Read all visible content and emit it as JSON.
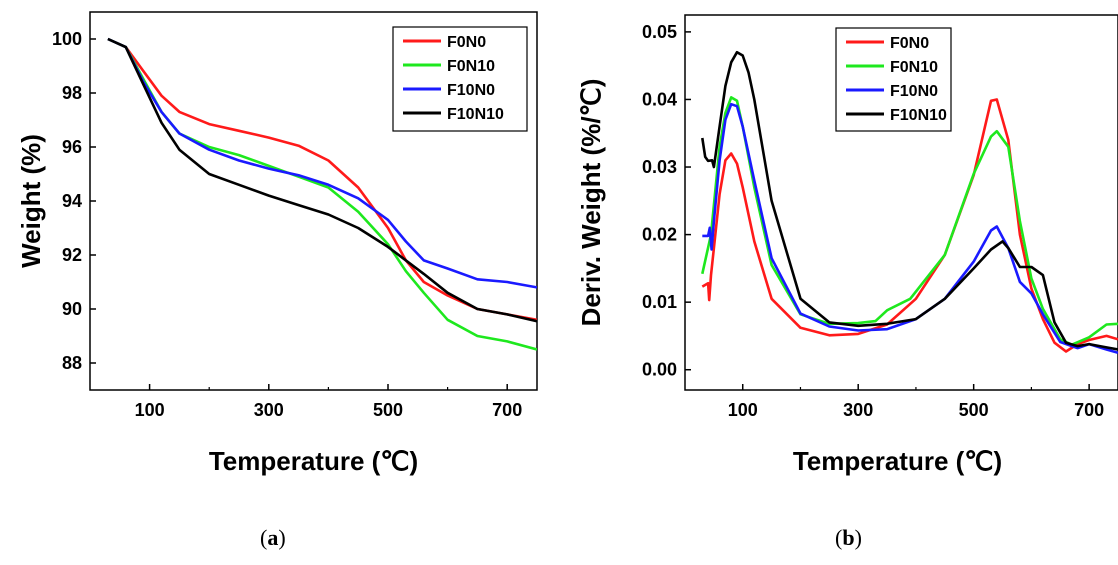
{
  "figure": {
    "panels": [
      {
        "caption_open": "(",
        "caption_letter": "a",
        "caption_close": ")"
      },
      {
        "caption_open": "(",
        "caption_letter": "b",
        "caption_close": ")"
      }
    ]
  },
  "chart_data": [
    {
      "type": "line",
      "title": "",
      "xlabel": "Temperature (℃)",
      "ylabel": "Weight (%)",
      "xlim": [
        0,
        750
      ],
      "ylim": [
        87,
        101
      ],
      "xticks": [
        100,
        300,
        500,
        700
      ],
      "yticks": [
        88,
        90,
        92,
        94,
        96,
        98,
        100
      ],
      "grid": false,
      "legend_position": "top-right",
      "series": [
        {
          "name": "F0N0",
          "color": "#ff1a1a",
          "x": [
            30,
            60,
            90,
            120,
            150,
            200,
            250,
            300,
            350,
            400,
            450,
            500,
            530,
            560,
            600,
            650,
            700,
            750
          ],
          "y": [
            100,
            99.7,
            98.8,
            97.9,
            97.3,
            96.85,
            96.6,
            96.35,
            96.05,
            95.5,
            94.5,
            93.0,
            91.8,
            91.0,
            90.5,
            90.0,
            89.8,
            89.6
          ]
        },
        {
          "name": "F0N10",
          "color": "#1ee81e",
          "x": [
            30,
            60,
            90,
            120,
            150,
            200,
            250,
            300,
            350,
            400,
            450,
            500,
            530,
            560,
            600,
            650,
            700,
            750
          ],
          "y": [
            100,
            99.7,
            98.5,
            97.3,
            96.5,
            96.0,
            95.7,
            95.3,
            94.9,
            94.5,
            93.6,
            92.4,
            91.4,
            90.6,
            89.6,
            89.0,
            88.8,
            88.5
          ]
        },
        {
          "name": "F10N0",
          "color": "#1a1aff",
          "x": [
            30,
            60,
            90,
            120,
            150,
            200,
            250,
            300,
            350,
            400,
            450,
            500,
            530,
            560,
            600,
            650,
            700,
            750
          ],
          "y": [
            100,
            99.7,
            98.4,
            97.3,
            96.5,
            95.9,
            95.5,
            95.2,
            94.95,
            94.6,
            94.1,
            93.3,
            92.5,
            91.8,
            91.5,
            91.1,
            91.0,
            90.8
          ]
        },
        {
          "name": "F10N10",
          "color": "#000000",
          "x": [
            30,
            60,
            90,
            120,
            150,
            200,
            250,
            300,
            350,
            400,
            450,
            500,
            530,
            560,
            600,
            650,
            700,
            750
          ],
          "y": [
            100,
            99.7,
            98.3,
            96.9,
            95.9,
            95.0,
            94.6,
            94.2,
            93.85,
            93.5,
            93.0,
            92.3,
            91.8,
            91.3,
            90.6,
            90.0,
            89.8,
            89.55
          ]
        }
      ]
    },
    {
      "type": "line",
      "title": "",
      "xlabel": "Temperature (℃)",
      "ylabel": "Deriv. Weight (%/℃)",
      "xlim": [
        0,
        750
      ],
      "ylim": [
        -0.003,
        0.0525
      ],
      "xticks": [
        100,
        300,
        500,
        700
      ],
      "yticks": [
        0.0,
        0.01,
        0.02,
        0.03,
        0.04,
        0.05
      ],
      "ytick_labels": [
        "0.00",
        "0.01",
        "0.02",
        "0.03",
        "0.04",
        "0.05"
      ],
      "grid": false,
      "legend_position": "top-left",
      "series": [
        {
          "name": "F0N0",
          "color": "#ff1a1a",
          "x": [
            30,
            40,
            42,
            45,
            50,
            60,
            70,
            80,
            90,
            100,
            120,
            150,
            200,
            250,
            300,
            350,
            400,
            450,
            500,
            530,
            540,
            560,
            580,
            600,
            620,
            640,
            660,
            680,
            700,
            730,
            750
          ],
          "y": [
            0.0123,
            0.0128,
            0.0103,
            0.014,
            0.018,
            0.026,
            0.031,
            0.032,
            0.0305,
            0.027,
            0.019,
            0.0105,
            0.0062,
            0.0051,
            0.0053,
            0.0067,
            0.0105,
            0.017,
            0.0288,
            0.0398,
            0.04,
            0.034,
            0.02,
            0.012,
            0.0075,
            0.004,
            0.0027,
            0.0038,
            0.0044,
            0.005,
            0.0045
          ]
        },
        {
          "name": "F0N10",
          "color": "#1ee81e",
          "x": [
            30,
            45,
            60,
            70,
            80,
            90,
            100,
            120,
            150,
            200,
            250,
            300,
            330,
            350,
            390,
            450,
            500,
            530,
            540,
            560,
            580,
            600,
            620,
            650,
            670,
            700,
            730,
            750
          ],
          "y": [
            0.0142,
            0.02,
            0.033,
            0.038,
            0.0403,
            0.0398,
            0.036,
            0.027,
            0.0155,
            0.0082,
            0.0068,
            0.0069,
            0.0072,
            0.0088,
            0.0105,
            0.017,
            0.029,
            0.0345,
            0.0353,
            0.033,
            0.022,
            0.0135,
            0.009,
            0.0045,
            0.0037,
            0.0048,
            0.0067,
            0.0068
          ]
        },
        {
          "name": "F10N0",
          "color": "#1a1aff",
          "x": [
            30,
            40,
            43,
            46,
            50,
            60,
            70,
            80,
            90,
            100,
            120,
            150,
            200,
            250,
            300,
            350,
            400,
            450,
            500,
            530,
            540,
            560,
            580,
            600,
            620,
            650,
            680,
            700,
            730,
            750
          ],
          "y": [
            0.0198,
            0.0198,
            0.021,
            0.0178,
            0.022,
            0.031,
            0.037,
            0.0393,
            0.039,
            0.036,
            0.028,
            0.0165,
            0.0083,
            0.0064,
            0.0058,
            0.006,
            0.0075,
            0.0105,
            0.016,
            0.0206,
            0.0212,
            0.018,
            0.013,
            0.0113,
            0.0082,
            0.0041,
            0.0032,
            0.0038,
            0.003,
            0.0025
          ]
        },
        {
          "name": "F10N10",
          "color": "#000000",
          "x": [
            30,
            35,
            40,
            47,
            50,
            60,
            70,
            80,
            90,
            100,
            110,
            120,
            150,
            200,
            250,
            300,
            350,
            400,
            450,
            500,
            530,
            550,
            560,
            580,
            600,
            620,
            640,
            660,
            680,
            700,
            730,
            750
          ],
          "y": [
            0.0343,
            0.0315,
            0.0309,
            0.031,
            0.03,
            0.036,
            0.042,
            0.0455,
            0.047,
            0.0465,
            0.044,
            0.04,
            0.025,
            0.0105,
            0.007,
            0.0065,
            0.0068,
            0.0075,
            0.0105,
            0.015,
            0.0178,
            0.019,
            0.018,
            0.0152,
            0.0152,
            0.014,
            0.007,
            0.004,
            0.0035,
            0.0038,
            0.0033,
            0.003
          ]
        }
      ]
    }
  ]
}
